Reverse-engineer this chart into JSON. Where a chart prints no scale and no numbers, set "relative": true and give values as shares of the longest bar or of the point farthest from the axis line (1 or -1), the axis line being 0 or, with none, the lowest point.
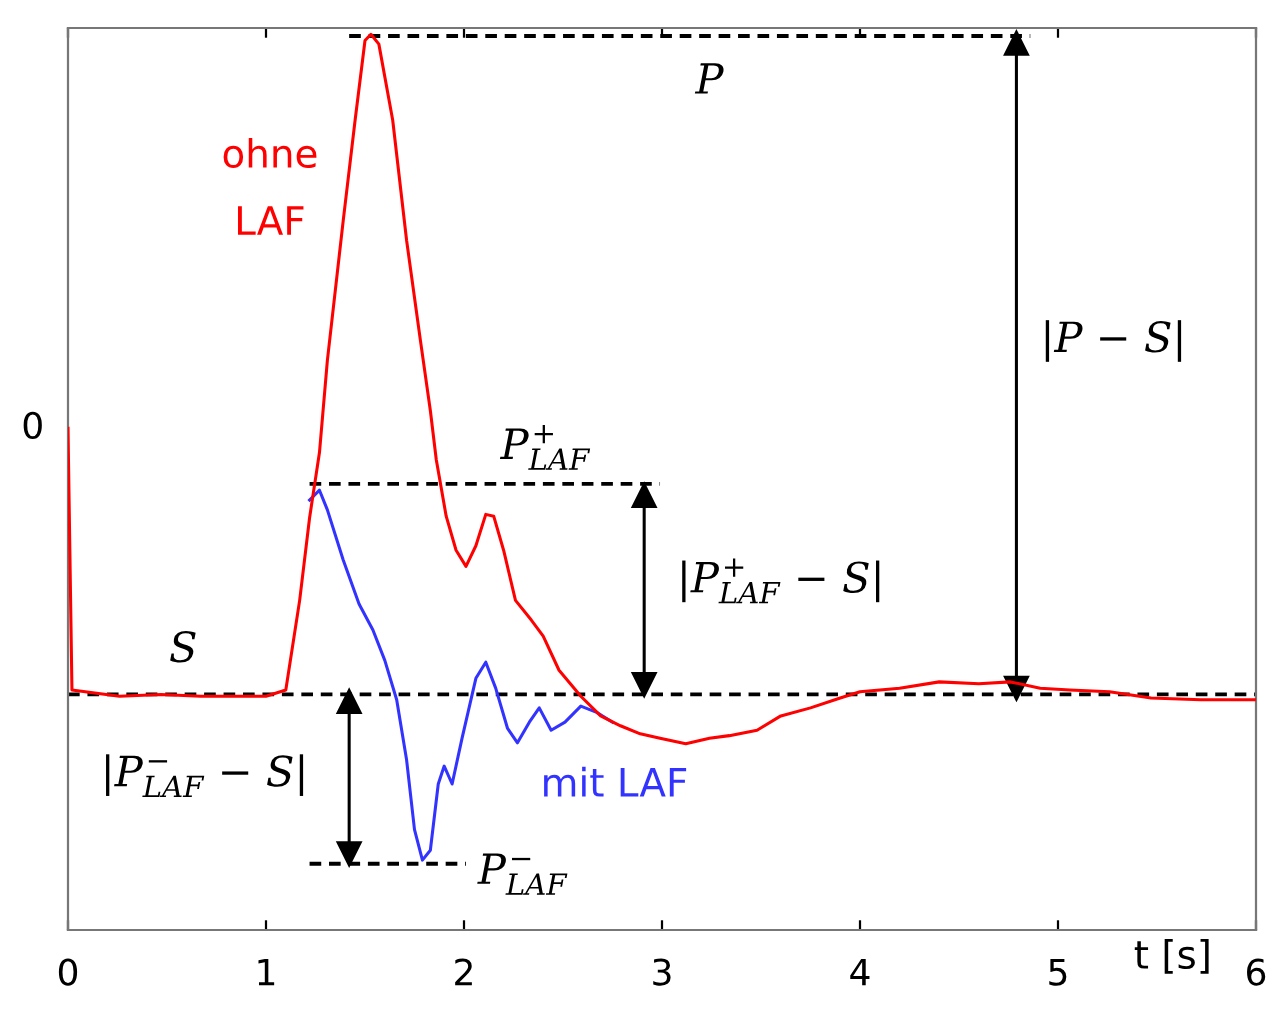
{
  "chart_data": {
    "type": "line",
    "relative": true,
    "xlabel": "t [s]",
    "xlim": [
      0,
      6
    ],
    "xticks": [
      0,
      1,
      2,
      3,
      4,
      5,
      6
    ],
    "line_style": "solid",
    "marker": "none",
    "grid": false,
    "legend": false,
    "series": [
      {
        "name": "ohne\nLAF",
        "color": "#ff0000",
        "x": [
          0,
          0.02,
          0.26,
          0.47,
          0.67,
          1.0,
          1.1,
          1.17,
          1.22,
          1.27,
          1.31,
          1.39,
          1.45,
          1.5,
          1.53,
          1.57,
          1.64,
          1.71,
          1.78,
          1.83,
          1.86,
          1.91,
          1.96,
          2.01,
          2.06,
          2.11,
          2.15,
          2.2,
          2.26,
          2.34,
          2.4,
          2.48,
          2.59,
          2.69,
          2.79,
          2.89,
          2.99,
          3.12,
          3.24,
          3.34,
          3.48,
          3.6,
          3.75,
          3.9,
          4.0,
          4.2,
          4.4,
          4.6,
          4.76,
          4.91,
          5.06,
          5.26,
          5.47,
          5.72,
          6.0
        ],
        "values": [
          0.56,
          0.268,
          0.261,
          0.263,
          0.261,
          0.261,
          0.268,
          0.368,
          0.46,
          0.533,
          0.636,
          0.792,
          0.904,
          0.993,
          1.0,
          0.989,
          0.904,
          0.77,
          0.658,
          0.58,
          0.525,
          0.462,
          0.424,
          0.406,
          0.429,
          0.464,
          0.462,
          0.424,
          0.368,
          0.346,
          0.328,
          0.29,
          0.261,
          0.239,
          0.228,
          0.219,
          0.214,
          0.208,
          0.214,
          0.217,
          0.223,
          0.239,
          0.248,
          0.259,
          0.266,
          0.27,
          0.277,
          0.275,
          0.277,
          0.27,
          0.268,
          0.266,
          0.259,
          0.257,
          0.257
        ]
      },
      {
        "name": "mit LAF",
        "color": "#3333ff",
        "x": [
          1.22,
          1.27,
          1.31,
          1.39,
          1.47,
          1.54,
          1.6,
          1.66,
          1.71,
          1.75,
          1.79,
          1.83,
          1.87,
          1.9,
          1.94,
          1.99,
          2.06,
          2.11,
          2.16,
          2.22,
          2.27,
          2.33,
          2.38,
          2.44,
          2.51,
          2.59,
          2.67,
          2.75
        ],
        "values": [
          0.48,
          0.491,
          0.469,
          0.413,
          0.364,
          0.335,
          0.301,
          0.257,
          0.19,
          0.112,
          0.078,
          0.089,
          0.163,
          0.183,
          0.163,
          0.214,
          0.281,
          0.299,
          0.27,
          0.225,
          0.209,
          0.232,
          0.248,
          0.223,
          0.232,
          0.25,
          0.243,
          0.232
        ]
      },
      {
        "color": "#000000",
        "line_style": "dashed",
        "x": [
          1.42,
          4.86
        ],
        "values": [
          0.998,
          0.998
        ]
      },
      {
        "color": "#000000",
        "line_style": "dashed",
        "x": [
          1.22,
          2.99
        ],
        "values": [
          0.498,
          0.498
        ]
      },
      {
        "color": "#000000",
        "line_style": "dashed",
        "x": [
          1.22,
          2.01
        ],
        "values": [
          0.074,
          0.074
        ]
      },
      {
        "color": "#000000",
        "marker": "triangle",
        "x": [
          4.79,
          4.79
        ],
        "values": [
          0.99,
          0.27
        ]
      },
      {
        "color": "#000000",
        "marker": "triangle",
        "x": [
          2.91,
          2.91
        ],
        "values": [
          0.485,
          0.274
        ]
      },
      {
        "color": "#000000",
        "marker": "triangle",
        "x": [
          1.42,
          1.42
        ],
        "values": [
          0.255,
          0.085
        ]
      }
    ],
    "ref_lines": [
      {
        "axis": "y",
        "value": 0.263,
        "color": "#000000",
        "line_style": "dashed"
      }
    ],
    "annotations": [
      "0",
      "S",
      "P",
      "P$^{+}$$_{LAF}$",
      "|P$^{+}$$_{LAF}$ − S|",
      "|P − S|",
      "|P$^{−}$$_{LAF}$ − S|",
      "P$^{−}$$_{LAF}$"
    ]
  }
}
